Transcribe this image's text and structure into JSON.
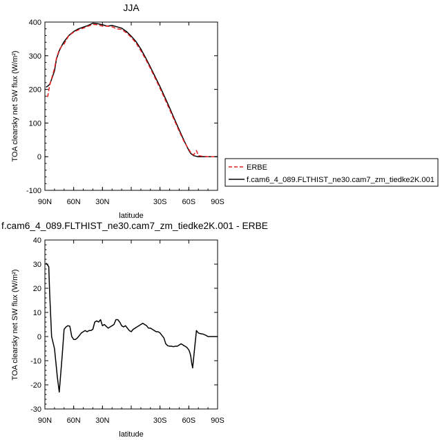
{
  "chart_data": [
    {
      "type": "line",
      "title": "JJA",
      "xlabel": "latitude",
      "ylabel": "TOA clearsky net SW flux (W/m²)",
      "ylim": [
        -100,
        400
      ],
      "xlim": [
        90,
        -90
      ],
      "xticks": [
        90,
        60,
        30,
        0,
        -30,
        -60,
        -90
      ],
      "xtick_labels": [
        "90N",
        "60N",
        "30N",
        "",
        "30S",
        "60S",
        "90S"
      ],
      "yticks": [
        -100,
        0,
        100,
        200,
        300,
        400
      ],
      "ytick_labels": [
        "-100",
        "0",
        "100",
        "200",
        "300",
        "400"
      ],
      "legend": {
        "placement": "right",
        "entries": [
          {
            "label": "ERBE",
            "color": "#e41a1c",
            "style": "dashed"
          },
          {
            "label": "f.cam6_4_089.FLTHIST_ne30.cam7_zm_tiedke2K.001",
            "color": "#000000",
            "style": "solid"
          }
        ]
      },
      "series": [
        {
          "name": "ERBE",
          "color": "#e41a1c",
          "x": [
            88,
            87,
            85,
            83,
            80,
            78,
            75,
            72,
            70,
            65,
            60,
            55,
            50,
            45,
            40,
            35,
            30,
            25,
            20,
            15,
            10,
            5,
            0,
            -5,
            -10,
            -15,
            -20,
            -25,
            -30,
            -35,
            -40,
            -45,
            -50,
            -55,
            -60,
            -62,
            -65,
            -68,
            -70,
            -75,
            -80,
            -85,
            -90
          ],
          "y": [
            178,
            180,
            212,
            232,
            262,
            292,
            318,
            330,
            335,
            360,
            370,
            377,
            382,
            388,
            393,
            392,
            388,
            388,
            386,
            380,
            378,
            368,
            355,
            338,
            315,
            290,
            262,
            233,
            203,
            172,
            140,
            108,
            76,
            45,
            22,
            12,
            5,
            18,
            3,
            1,
            0,
            0,
            0
          ]
        },
        {
          "name": "f.cam6_4_089.FLTHIST_ne30.cam7_zm_tiedke2K.001",
          "color": "#000000",
          "x": [
            89,
            88,
            87,
            85,
            83,
            80,
            78,
            75,
            72,
            70,
            65,
            60,
            55,
            50,
            45,
            40,
            35,
            30,
            25,
            20,
            15,
            10,
            5,
            0,
            -5,
            -10,
            -15,
            -20,
            -25,
            -30,
            -35,
            -40,
            -45,
            -50,
            -55,
            -60,
            -62,
            -65,
            -68,
            -70,
            -75,
            -80,
            -85,
            -90
          ],
          "y": [
            207,
            208,
            210,
            215,
            230,
            255,
            290,
            315,
            332,
            342,
            360,
            372,
            380,
            385,
            390,
            397,
            395,
            392,
            388,
            390,
            386,
            382,
            372,
            358,
            342,
            320,
            294,
            266,
            237,
            208,
            177,
            145,
            112,
            80,
            48,
            19,
            10,
            3,
            1,
            0,
            0,
            0,
            0,
            0
          ]
        }
      ]
    },
    {
      "type": "line",
      "title": "f.cam6_4_089.FLTHIST_ne30.cam7_zm_tiedke2K.001 - ERBE",
      "xlabel": "latitude",
      "ylabel": "TOA clearsky net SW flux (W/m²)",
      "ylim": [
        -30,
        40
      ],
      "xlim": [
        90,
        -90
      ],
      "xticks": [
        90,
        60,
        30,
        0,
        -30,
        -60,
        -90
      ],
      "xtick_labels": [
        "90N",
        "60N",
        "30N",
        "",
        "30S",
        "60S",
        "90S"
      ],
      "yticks": [
        -30,
        -20,
        -10,
        0,
        10,
        20,
        30,
        40
      ],
      "ytick_labels": [
        "-30",
        "-20",
        "-10",
        "0",
        "10",
        "20",
        "30",
        "40"
      ],
      "series": [
        {
          "name": "",
          "color": "#000000",
          "x": [
            89,
            88,
            87,
            86,
            85,
            83,
            80,
            77,
            75,
            72,
            70,
            68,
            66,
            64,
            62,
            60,
            58,
            56,
            54,
            52,
            50,
            48,
            46,
            44,
            42,
            40,
            38,
            36,
            34,
            32,
            30,
            28,
            26,
            24,
            22,
            20,
            18,
            16,
            14,
            12,
            10,
            8,
            6,
            4,
            2,
            0,
            -2,
            -4,
            -6,
            -8,
            -10,
            -12,
            -14,
            -16,
            -18,
            -20,
            -22,
            -24,
            -26,
            -28,
            -30,
            -32,
            -34,
            -36,
            -38,
            -40,
            -42,
            -44,
            -46,
            -48,
            -50,
            -52,
            -54,
            -56,
            -58,
            -60,
            -61,
            -62,
            -63,
            -64,
            -65,
            -66,
            -68,
            -70,
            -72,
            -75,
            -78,
            -80,
            -85,
            -90
          ],
          "y": [
            30.5,
            30,
            29.5,
            29,
            18,
            0,
            -5,
            -17,
            -23,
            -8,
            3,
            4,
            4.5,
            4.3,
            0,
            -1.2,
            -1.2,
            -0.5,
            0.5,
            1.5,
            2,
            2.5,
            2,
            2.5,
            2.5,
            3,
            6,
            6.5,
            6,
            7,
            4.5,
            5,
            4.2,
            3.5,
            4,
            4.5,
            5,
            7,
            7,
            6,
            4.5,
            4,
            4.5,
            3.5,
            2.5,
            2,
            3,
            3.5,
            4,
            4.5,
            5,
            5.5,
            5,
            4.5,
            3.5,
            3.5,
            3,
            2.5,
            2,
            2,
            1.5,
            0.5,
            -0.5,
            -3,
            -3.8,
            -4,
            -4,
            -4.2,
            -4,
            -4,
            -3.5,
            -3,
            -3.5,
            -4,
            -4.5,
            -5.5,
            -6.5,
            -8,
            -11,
            -13,
            -9,
            -5,
            2.5,
            1.5,
            1.2,
            1,
            0.5,
            0,
            0,
            0
          ]
        }
      ]
    }
  ]
}
